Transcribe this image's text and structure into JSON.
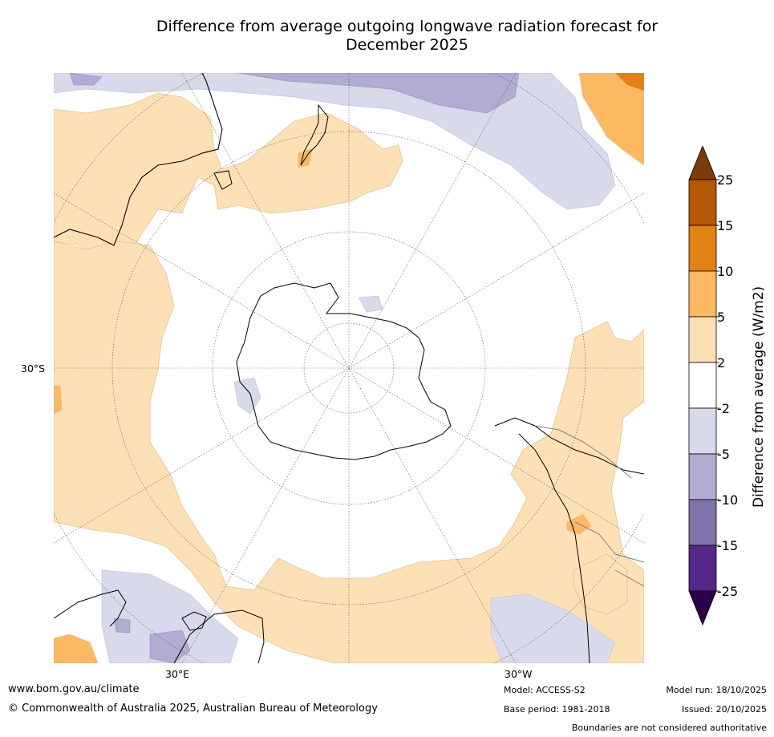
{
  "title_line1": "Difference from average outgoing longwave radiation forecast for",
  "title_line2": "December 2025",
  "lat_label": "30°S",
  "lon_labels": [
    "30°E",
    "30°W"
  ],
  "colorbar": {
    "label": "Difference from average (W/m2)",
    "ticks": [
      "25",
      "15",
      "10",
      "5",
      "2",
      "-2",
      "-5",
      "-10",
      "-15",
      "-25"
    ],
    "colors": [
      "#7a3b08",
      "#b35806",
      "#e08214",
      "#fdb863",
      "#fee0b6",
      "#ffffff",
      "#d8daeb",
      "#b2abd2",
      "#8073ac",
      "#542788",
      "#2d004b"
    ]
  },
  "footer": {
    "url": "www.bom.gov.au/climate",
    "copyright": "© Commonwealth of Australia 2025, Australian Bureau of Meteorology",
    "model": "Model: ACCESS-S2",
    "base_period": "Base period: 1981-2018",
    "model_run": "Model run: 18/10/2025",
    "issued": "Issued: 20/10/2025",
    "disclaimer": "Boundaries are not considered authoritative"
  }
}
